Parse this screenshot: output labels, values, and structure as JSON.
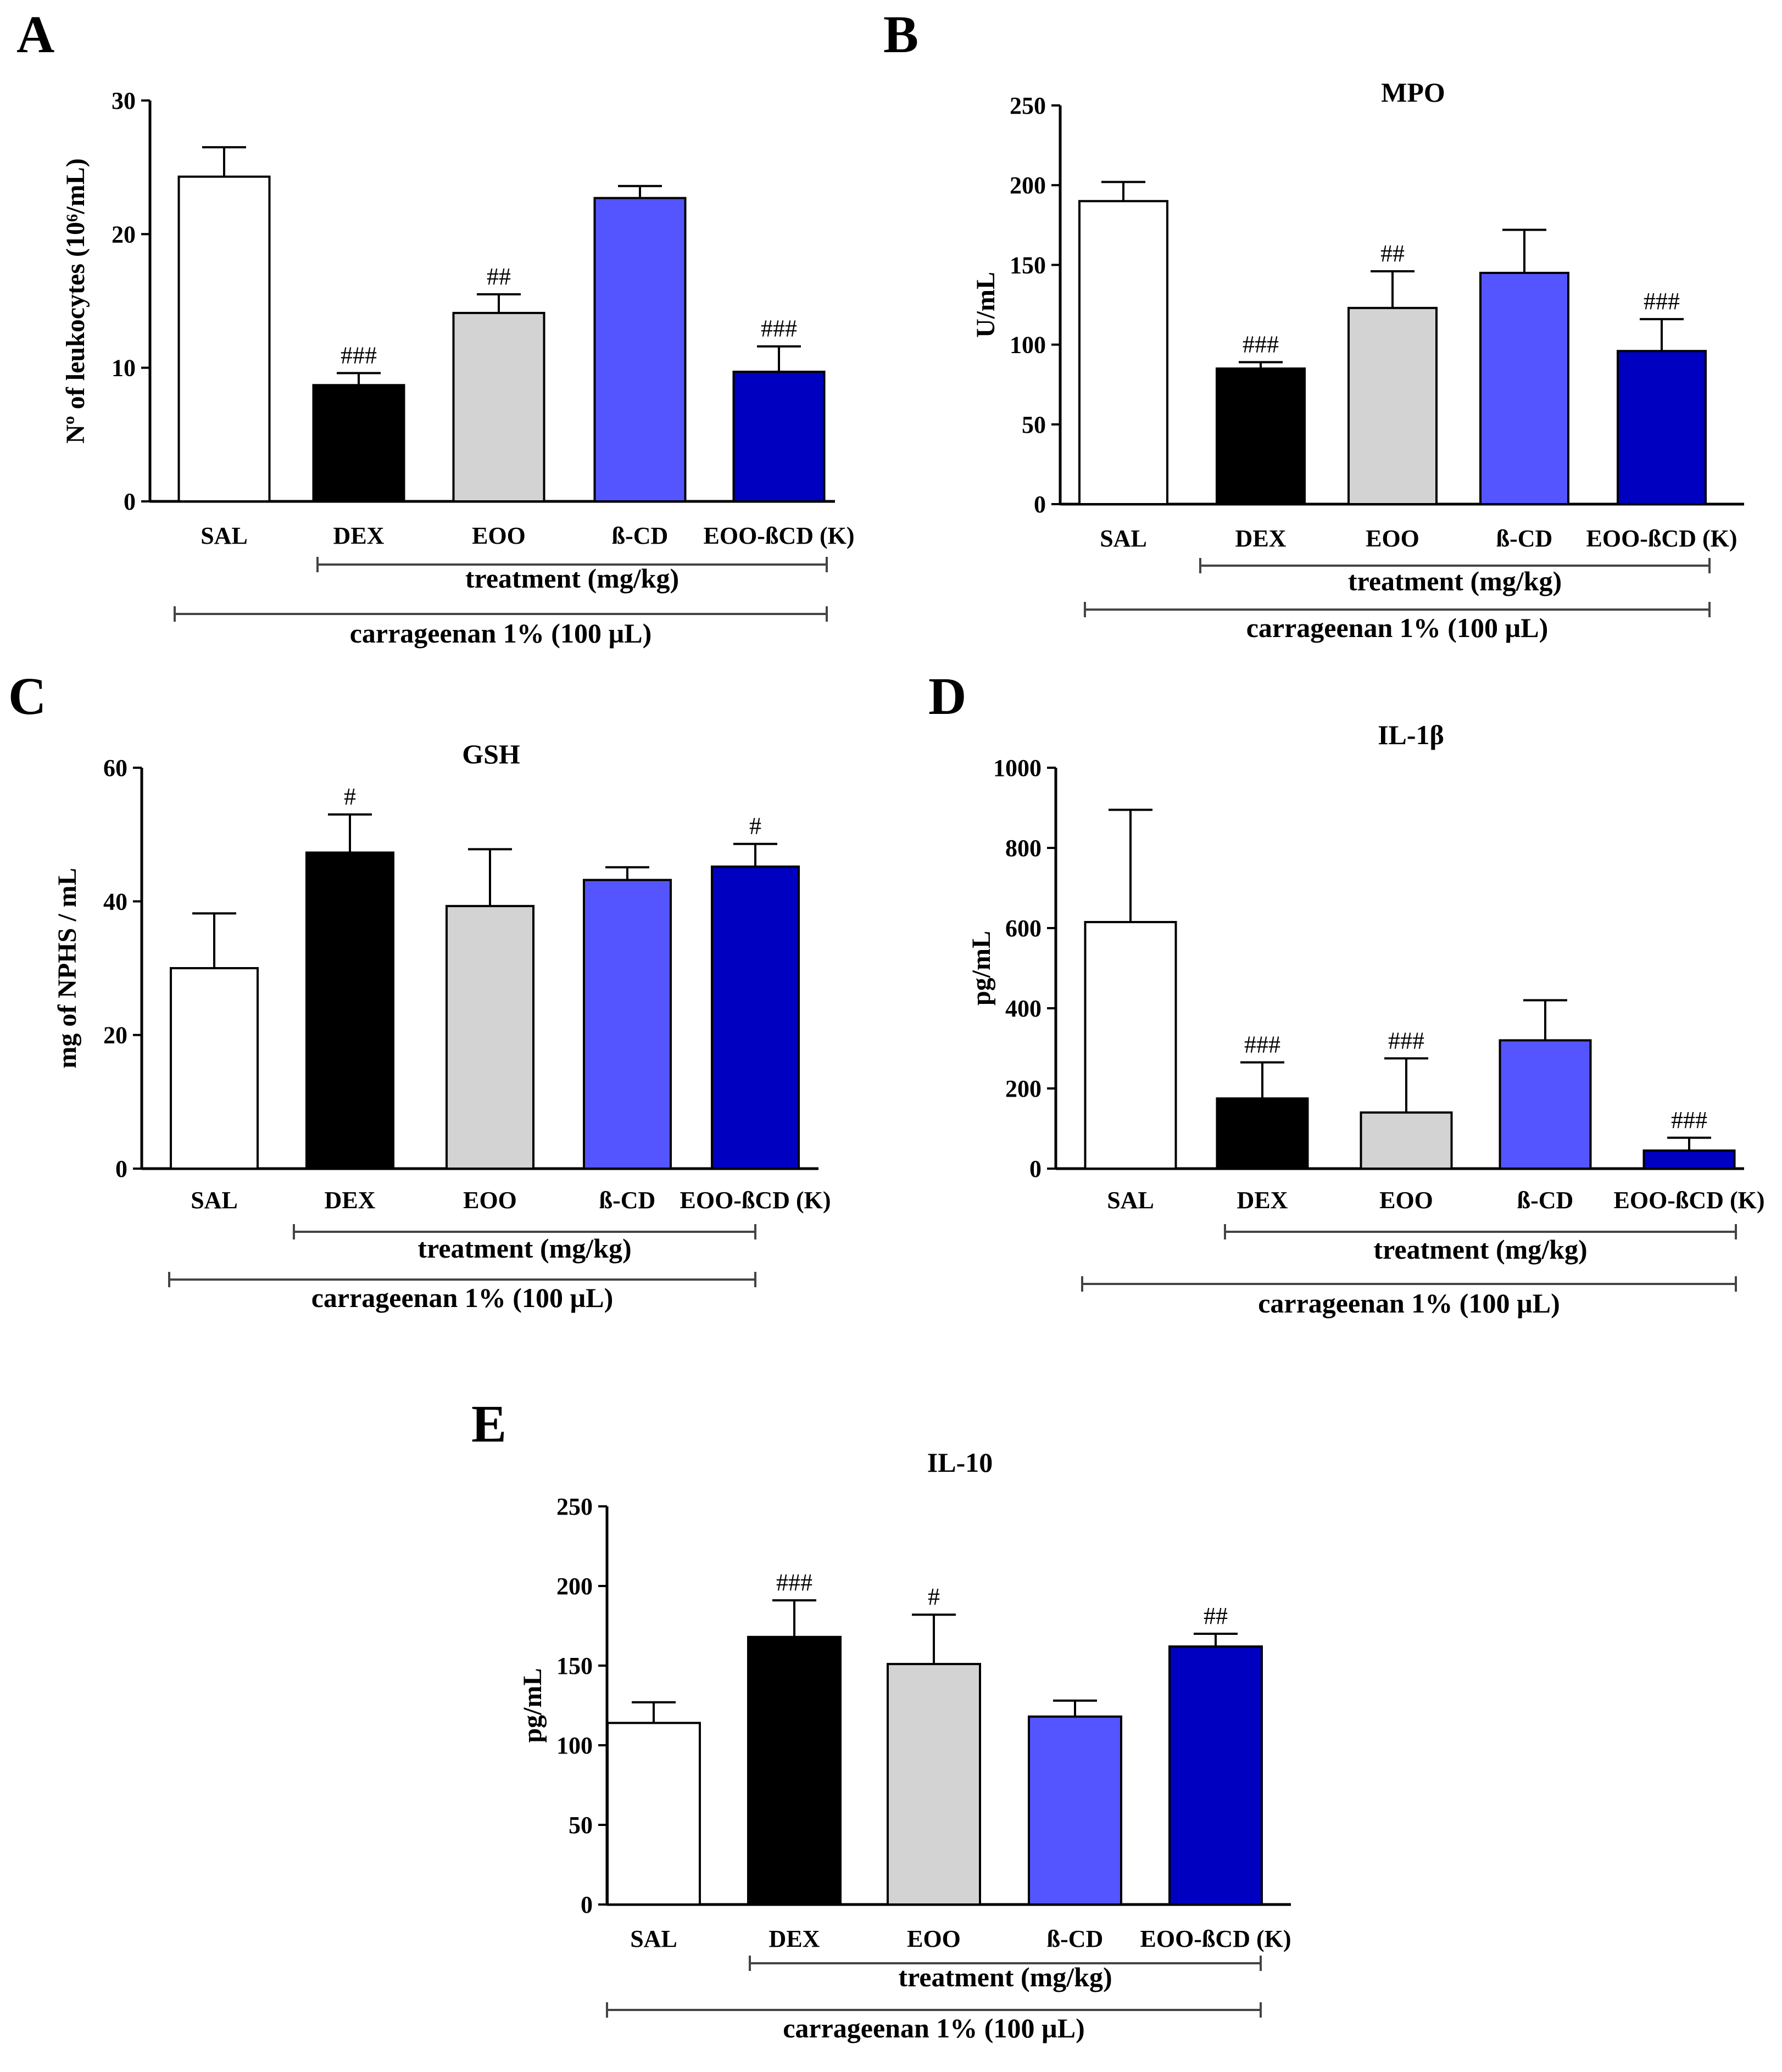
{
  "colors": {
    "SAL": "#ffffff",
    "DEX": "#000000",
    "EOO": "#d3d3d3",
    "B-CD": "#5555ff",
    "EOO-BCD": "#0000c0",
    "axis": "#000000",
    "bracket": "#444444"
  },
  "chart_data": [
    {
      "panel": "A",
      "type": "bar",
      "title": "",
      "ylabel": "Nº of leukocytes (10⁶/mL)",
      "ylim": [
        0,
        30
      ],
      "yticks": [
        0,
        10,
        20,
        30
      ],
      "categories": [
        "SAL",
        "DEX",
        "EOO",
        "ß-CD",
        "EOO-ßCD (K)"
      ],
      "values": [
        24.3,
        8.7,
        14.1,
        22.7,
        9.7
      ],
      "errors": [
        2.2,
        0.9,
        1.4,
        0.9,
        1.9
      ],
      "significance": [
        "",
        "###",
        "##",
        "",
        "###"
      ],
      "treatment_label": "treatment (mg/kg)",
      "carrageenan_label": "carrageenan 1% (100 µL)"
    },
    {
      "panel": "B",
      "type": "bar",
      "title": "MPO",
      "ylabel": "U/mL",
      "ylim": [
        0,
        250
      ],
      "yticks": [
        0,
        50,
        100,
        150,
        200,
        250
      ],
      "categories": [
        "SAL",
        "DEX",
        "EOO",
        "ß-CD",
        "EOO-ßCD (K)"
      ],
      "values": [
        190,
        85,
        123,
        145,
        96
      ],
      "errors": [
        12,
        4,
        23,
        27,
        20
      ],
      "significance": [
        "",
        "###",
        "##",
        "",
        "###"
      ],
      "treatment_label": "treatment (mg/kg)",
      "carrageenan_label": "carrageenan 1% (100 µL)"
    },
    {
      "panel": "C",
      "type": "bar",
      "title": "GSH",
      "ylabel": "mg of NPHS / mL",
      "ylim": [
        0,
        60
      ],
      "yticks": [
        0,
        20,
        40,
        60
      ],
      "categories": [
        "SAL",
        "DEX",
        "EOO",
        "ß-CD",
        "EOO-ßCD (K)"
      ],
      "values": [
        30,
        47.3,
        39.3,
        43.2,
        45.2
      ],
      "errors": [
        8.2,
        5.7,
        8.5,
        1.9,
        3.4
      ],
      "significance": [
        "",
        "#",
        "",
        "",
        "#"
      ],
      "treatment_label": "treatment (mg/kg)",
      "carrageenan_label": "carrageenan 1% (100 µL)"
    },
    {
      "panel": "D",
      "type": "bar",
      "title": "IL-1β",
      "ylabel": "pg/mL",
      "ylim": [
        0,
        1000
      ],
      "yticks": [
        0,
        200,
        400,
        600,
        800,
        1000
      ],
      "categories": [
        "SAL",
        "DEX",
        "EOO",
        "ß-CD",
        "EOO-ßCD (K)"
      ],
      "values": [
        615,
        175,
        140,
        320,
        45
      ],
      "errors": [
        280,
        90,
        135,
        100,
        32
      ],
      "significance": [
        "",
        "###",
        "###",
        "",
        "###"
      ],
      "treatment_label": "treatment (mg/kg)",
      "carrageenan_label": "carrageenan 1% (100 µL)"
    },
    {
      "panel": "E",
      "type": "bar",
      "title": "IL-10",
      "ylabel": "pg/mL",
      "ylim": [
        0,
        250
      ],
      "yticks": [
        0,
        50,
        100,
        150,
        200,
        250
      ],
      "categories": [
        "SAL",
        "DEX",
        "EOO",
        "ß-CD",
        "EOO-ßCD (K)"
      ],
      "values": [
        114,
        168,
        151,
        118,
        162
      ],
      "errors": [
        13,
        23,
        31,
        10,
        8
      ],
      "significance": [
        "",
        "###",
        "#",
        "",
        "##"
      ],
      "treatment_label": "treatment (mg/kg)",
      "carrageenan_label": "carrageenan 1% (100 µL)"
    }
  ]
}
